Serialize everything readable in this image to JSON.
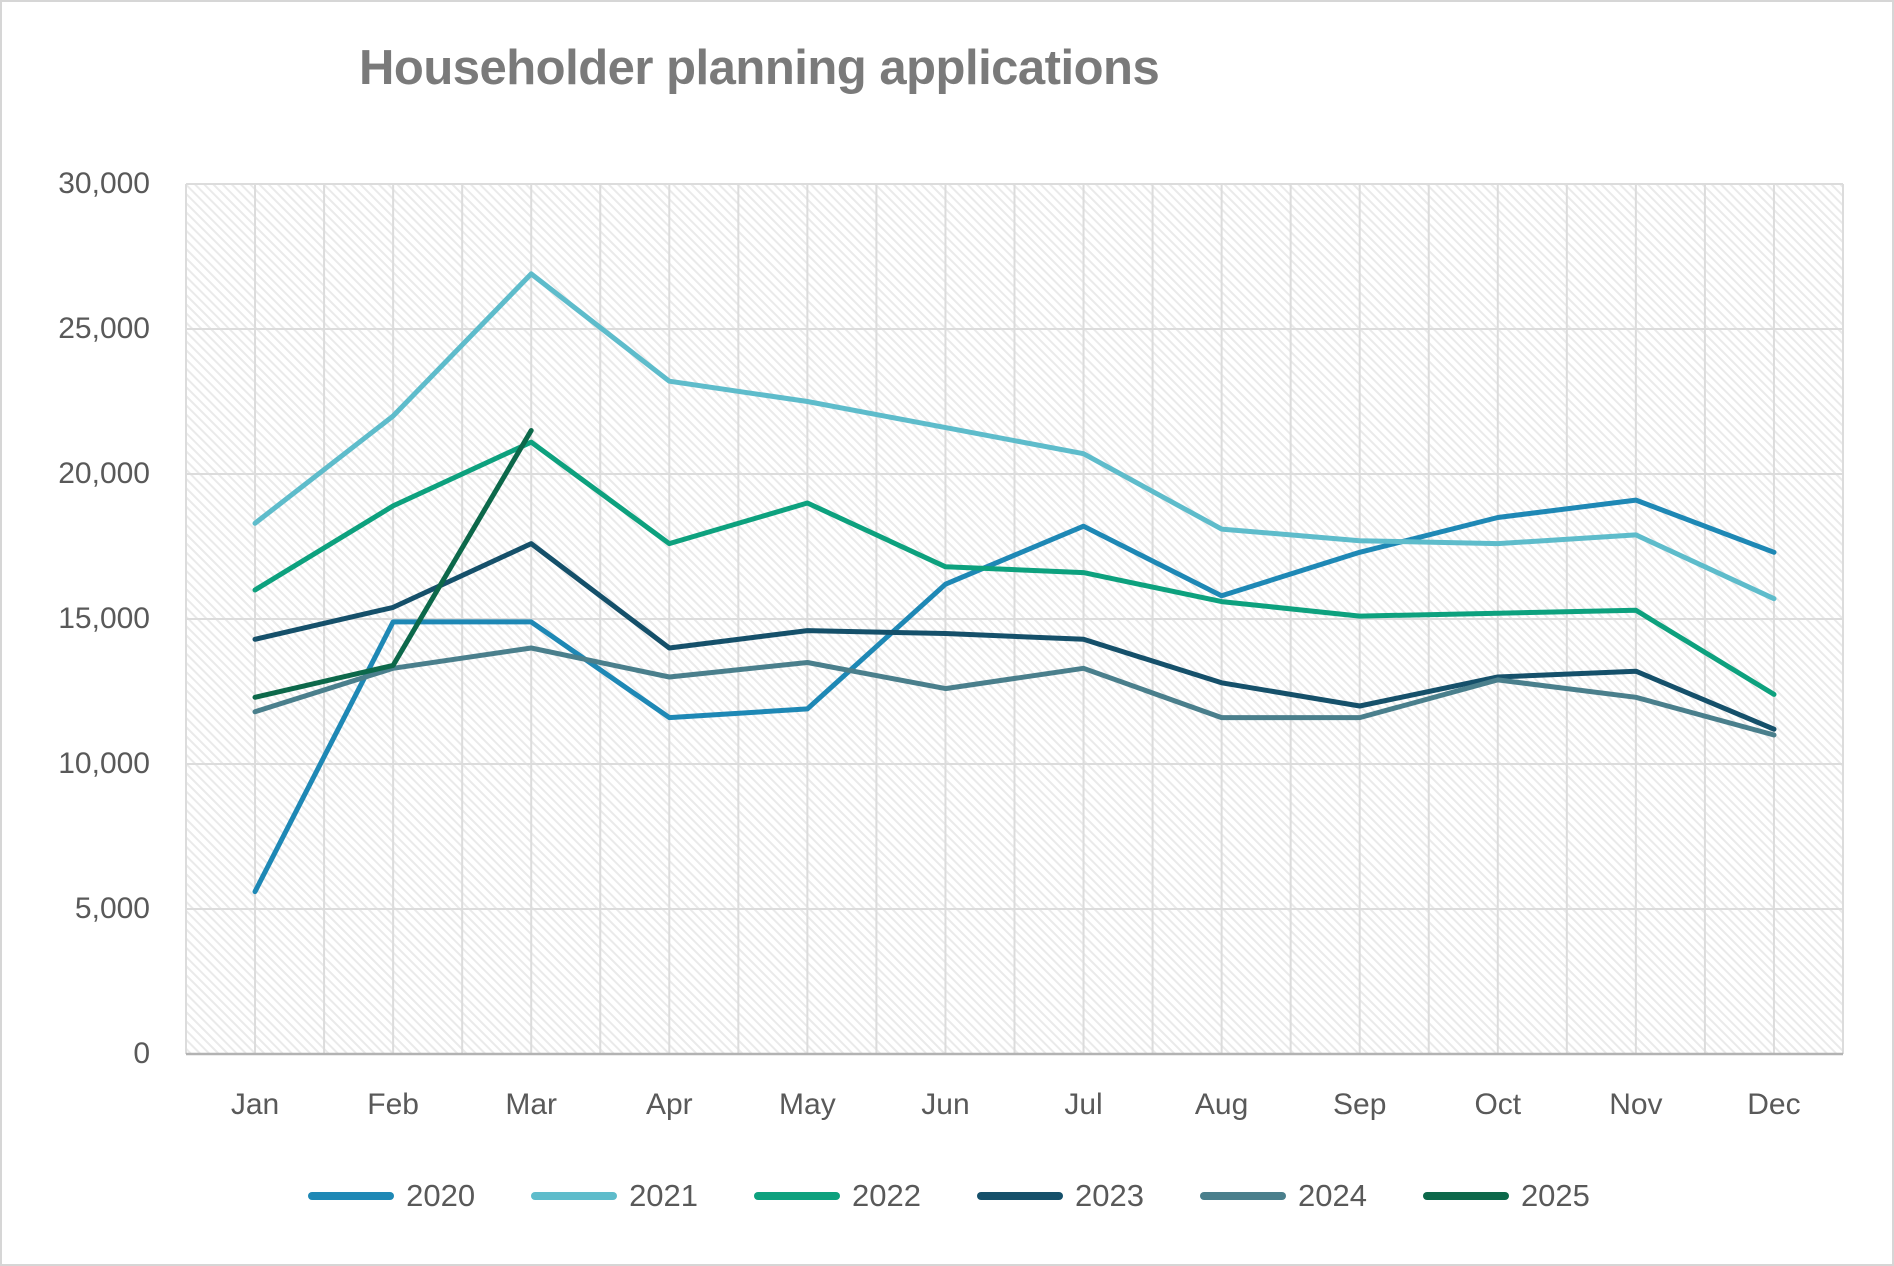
{
  "chart_data": {
    "type": "line",
    "title": "Householder planning applications",
    "categories": [
      "Jan",
      "Feb",
      "Mar",
      "Apr",
      "May",
      "Jun",
      "Jul",
      "Aug",
      "Sep",
      "Oct",
      "Nov",
      "Dec"
    ],
    "y_ticks": [
      {
        "label": "30,000",
        "value": 30000
      },
      {
        "label": "25,000",
        "value": 25000
      },
      {
        "label": "20,000",
        "value": 20000
      },
      {
        "label": "15,000",
        "value": 15000
      },
      {
        "label": "10,000",
        "value": 10000
      },
      {
        "label": "5,000",
        "value": 5000
      },
      {
        "label": "0",
        "value": 0
      }
    ],
    "ylim": [
      0,
      30000
    ],
    "grid": true,
    "legend_position": "bottom",
    "plot_background": "diagonal-hatch",
    "series": [
      {
        "name": "2020",
        "color": "#1E88B5",
        "values": [
          5600,
          14900,
          14900,
          11600,
          11900,
          16200,
          18200,
          15800,
          17300,
          18500,
          19100,
          17300
        ]
      },
      {
        "name": "2021",
        "color": "#5EBCCB",
        "values": [
          18300,
          22000,
          26900,
          23200,
          22500,
          21600,
          20700,
          18100,
          17700,
          17600,
          17900,
          15700
        ]
      },
      {
        "name": "2022",
        "color": "#0DA17E",
        "values": [
          16000,
          18900,
          21100,
          17600,
          19000,
          16800,
          16600,
          15600,
          15100,
          15200,
          15300,
          12400
        ]
      },
      {
        "name": "2023",
        "color": "#15506A",
        "values": [
          14300,
          15400,
          17600,
          14000,
          14600,
          14500,
          14300,
          12800,
          12000,
          13000,
          13200,
          11200
        ]
      },
      {
        "name": "2024",
        "color": "#4A7F8C",
        "values": [
          11800,
          13300,
          14000,
          13000,
          13500,
          12600,
          13300,
          11600,
          11600,
          12900,
          12300,
          11000
        ]
      },
      {
        "name": "2025",
        "color": "#0C684A",
        "values": [
          12300,
          13400,
          21500,
          null,
          null,
          null,
          null,
          null,
          null,
          null,
          null,
          null
        ]
      }
    ],
    "colors": {
      "axis_text": "#595959",
      "title_text": "#7a7a7a",
      "gridline": "#dcdcdc",
      "axis_line": "#b3b3b3",
      "hatch": "#eaeaea"
    }
  }
}
